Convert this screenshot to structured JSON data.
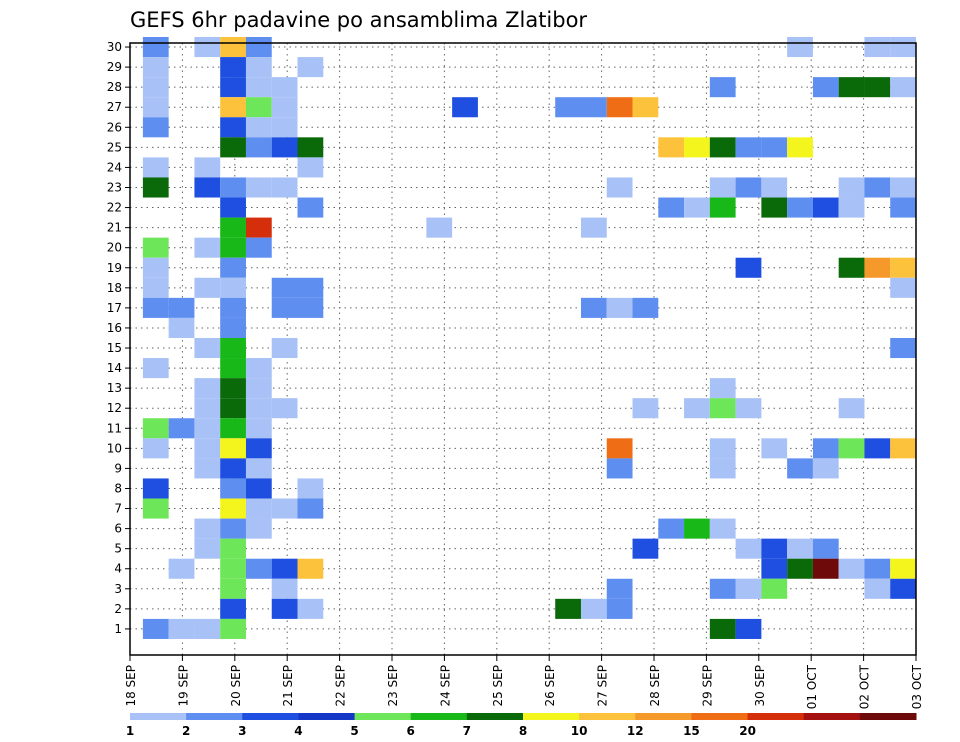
{
  "chart_data": {
    "type": "heatmap",
    "title": "GEFS 6hr padavine po ansamblima Zlatibor",
    "xlabel": "",
    "ylabel": "",
    "x_tick_labels": [
      "18 SEP",
      "19 SEP",
      "20 SEP",
      "21 SEP",
      "22 SEP",
      "23 SEP",
      "24 SEP",
      "25 SEP",
      "26 SEP",
      "27 SEP",
      "28 SEP",
      "29 SEP",
      "30 SEP",
      "01 OCT",
      "02 OCT",
      "03 OCT"
    ],
    "y_tick_labels": [
      1,
      2,
      3,
      4,
      5,
      6,
      7,
      8,
      9,
      10,
      11,
      12,
      13,
      14,
      15,
      16,
      17,
      18,
      19,
      20,
      21,
      22,
      23,
      24,
      25,
      26,
      27,
      28,
      29,
      30
    ],
    "y_range": [
      0,
      30
    ],
    "time_steps": 60,
    "grid": "dotted",
    "colorbar": {
      "labels": [
        "1",
        "2",
        "3",
        "4",
        "5",
        "6",
        "7",
        "8",
        "10",
        "12",
        "15",
        "20"
      ],
      "colors": [
        "#a8c1f6",
        "#5d8ef0",
        "#1e4fe0",
        "#1537c8",
        "#6ee65a",
        "#17b817",
        "#0a6a0a",
        "#f5f51e",
        "#fcc23c",
        "#f59a2a",
        "#ef6d14",
        "#d42e0a",
        "#a51010",
        "#6e0a0a"
      ]
    },
    "cells": [
      {
        "y": 30,
        "x": [
          1
        ],
        "c": 2
      },
      {
        "y": 30,
        "x": [
          3
        ],
        "c": 1
      },
      {
        "y": 30,
        "x": [
          4
        ],
        "c": 9
      },
      {
        "y": 30,
        "x": [
          5
        ],
        "c": 2
      },
      {
        "y": 30,
        "x": [
          26
        ],
        "c": 1
      },
      {
        "y": 30,
        "x": [
          29,
          30
        ],
        "c": 1
      },
      {
        "y": 29,
        "x": [
          1
        ],
        "c": 1
      },
      {
        "y": 29,
        "x": [
          4
        ],
        "c": 3
      },
      {
        "y": 29,
        "x": [
          5
        ],
        "c": 1
      },
      {
        "y": 29,
        "x": [
          7
        ],
        "c": 1
      },
      {
        "y": 28,
        "x": [
          1
        ],
        "c": 1
      },
      {
        "y": 28,
        "x": [
          4
        ],
        "c": 3
      },
      {
        "y": 28,
        "x": [
          5
        ],
        "c": 1
      },
      {
        "y": 28,
        "x": [
          6
        ],
        "c": 1
      },
      {
        "y": 28,
        "x": [
          23
        ],
        "c": 2
      },
      {
        "y": 28,
        "x": [
          27
        ],
        "c": 2
      },
      {
        "y": 28,
        "x": [
          28
        ],
        "c": 7
      },
      {
        "y": 28,
        "x": [
          29
        ],
        "c": 7
      },
      {
        "y": 28,
        "x": [
          30
        ],
        "c": 1
      },
      {
        "y": 27,
        "x": [
          1
        ],
        "c": 1
      },
      {
        "y": 27,
        "x": [
          4
        ],
        "c": 9
      },
      {
        "y": 27,
        "x": [
          5
        ],
        "c": 5
      },
      {
        "y": 27,
        "x": [
          6
        ],
        "c": 1
      },
      {
        "y": 27,
        "x": [
          13
        ],
        "c": 3
      },
      {
        "y": 27,
        "x": [
          17
        ],
        "c": 2
      },
      {
        "y": 27,
        "x": [
          18
        ],
        "c": 2
      },
      {
        "y": 27,
        "x": [
          19
        ],
        "c": 11
      },
      {
        "y": 27,
        "x": [
          20
        ],
        "c": 9
      },
      {
        "y": 26,
        "x": [
          1
        ],
        "c": 2
      },
      {
        "y": 26,
        "x": [
          4
        ],
        "c": 3
      },
      {
        "y": 26,
        "x": [
          5
        ],
        "c": 1
      },
      {
        "y": 26,
        "x": [
          6
        ],
        "c": 1
      },
      {
        "y": 25,
        "x": [
          4
        ],
        "c": 7
      },
      {
        "y": 25,
        "x": [
          5
        ],
        "c": 2
      },
      {
        "y": 25,
        "x": [
          6
        ],
        "c": 3
      },
      {
        "y": 25,
        "x": [
          7
        ],
        "c": 7
      },
      {
        "y": 25,
        "x": [
          21
        ],
        "c": 9
      },
      {
        "y": 25,
        "x": [
          22
        ],
        "c": 8
      },
      {
        "y": 25,
        "x": [
          23
        ],
        "c": 7
      },
      {
        "y": 25,
        "x": [
          24
        ],
        "c": 2
      },
      {
        "y": 25,
        "x": [
          25
        ],
        "c": 2
      },
      {
        "y": 25,
        "x": [
          26
        ],
        "c": 8
      },
      {
        "y": 24,
        "x": [
          1
        ],
        "c": 1
      },
      {
        "y": 24,
        "x": [
          3
        ],
        "c": 1
      },
      {
        "y": 24,
        "x": [
          7
        ],
        "c": 1
      },
      {
        "y": 23,
        "x": [
          1
        ],
        "c": 7
      },
      {
        "y": 23,
        "x": [
          3
        ],
        "c": 3
      },
      {
        "y": 23,
        "x": [
          4
        ],
        "c": 2
      },
      {
        "y": 23,
        "x": [
          5
        ],
        "c": 1
      },
      {
        "y": 23,
        "x": [
          6
        ],
        "c": 1
      },
      {
        "y": 23,
        "x": [
          19
        ],
        "c": 1
      },
      {
        "y": 23,
        "x": [
          23
        ],
        "c": 1
      },
      {
        "y": 23,
        "x": [
          24
        ],
        "c": 2
      },
      {
        "y": 23,
        "x": [
          25
        ],
        "c": 1
      },
      {
        "y": 23,
        "x": [
          28
        ],
        "c": 1
      },
      {
        "y": 23,
        "x": [
          29
        ],
        "c": 2
      },
      {
        "y": 23,
        "x": [
          30
        ],
        "c": 1
      },
      {
        "y": 22,
        "x": [
          4
        ],
        "c": 3
      },
      {
        "y": 22,
        "x": [
          7
        ],
        "c": 2
      },
      {
        "y": 22,
        "x": [
          21
        ],
        "c": 2
      },
      {
        "y": 22,
        "x": [
          22
        ],
        "c": 1
      },
      {
        "y": 22,
        "x": [
          23
        ],
        "c": 6
      },
      {
        "y": 22,
        "x": [
          25
        ],
        "c": 7
      },
      {
        "y": 22,
        "x": [
          26
        ],
        "c": 2
      },
      {
        "y": 22,
        "x": [
          27
        ],
        "c": 3
      },
      {
        "y": 22,
        "x": [
          28
        ],
        "c": 1
      },
      {
        "y": 22,
        "x": [
          30
        ],
        "c": 2
      },
      {
        "y": 21,
        "x": [
          4
        ],
        "c": 6
      },
      {
        "y": 21,
        "x": [
          5
        ],
        "c": 12
      },
      {
        "y": 21,
        "x": [
          12
        ],
        "c": 1
      },
      {
        "y": 21,
        "x": [
          18
        ],
        "c": 1
      },
      {
        "y": 20,
        "x": [
          1
        ],
        "c": 5
      },
      {
        "y": 20,
        "x": [
          3
        ],
        "c": 1
      },
      {
        "y": 20,
        "x": [
          4
        ],
        "c": 6
      },
      {
        "y": 20,
        "x": [
          5
        ],
        "c": 2
      },
      {
        "y": 19,
        "x": [
          1
        ],
        "c": 1
      },
      {
        "y": 19,
        "x": [
          4
        ],
        "c": 2
      },
      {
        "y": 19,
        "x": [
          24
        ],
        "c": 3
      },
      {
        "y": 19,
        "x": [
          28
        ],
        "c": 7
      },
      {
        "y": 19,
        "x": [
          29
        ],
        "c": 10
      },
      {
        "y": 19,
        "x": [
          30
        ],
        "c": 9
      },
      {
        "y": 18,
        "x": [
          1
        ],
        "c": 1
      },
      {
        "y": 18,
        "x": [
          3
        ],
        "c": 1
      },
      {
        "y": 18,
        "x": [
          4
        ],
        "c": 1
      },
      {
        "y": 18,
        "x": [
          6
        ],
        "c": 2
      },
      {
        "y": 18,
        "x": [
          7
        ],
        "c": 2
      },
      {
        "y": 18,
        "x": [
          30
        ],
        "c": 1
      },
      {
        "y": 17,
        "x": [
          1
        ],
        "c": 2
      },
      {
        "y": 17,
        "x": [
          2
        ],
        "c": 2
      },
      {
        "y": 17,
        "x": [
          4
        ],
        "c": 2
      },
      {
        "y": 17,
        "x": [
          6
        ],
        "c": 2
      },
      {
        "y": 17,
        "x": [
          7
        ],
        "c": 2
      },
      {
        "y": 17,
        "x": [
          18
        ],
        "c": 2
      },
      {
        "y": 17,
        "x": [
          19
        ],
        "c": 1
      },
      {
        "y": 17,
        "x": [
          20
        ],
        "c": 2
      },
      {
        "y": 16,
        "x": [
          2
        ],
        "c": 1
      },
      {
        "y": 16,
        "x": [
          4
        ],
        "c": 2
      },
      {
        "y": 15,
        "x": [
          3
        ],
        "c": 1
      },
      {
        "y": 15,
        "x": [
          4
        ],
        "c": 6
      },
      {
        "y": 15,
        "x": [
          6
        ],
        "c": 1
      },
      {
        "y": 15,
        "x": [
          30
        ],
        "c": 2
      },
      {
        "y": 14,
        "x": [
          1
        ],
        "c": 1
      },
      {
        "y": 14,
        "x": [
          4
        ],
        "c": 6
      },
      {
        "y": 14,
        "x": [
          5
        ],
        "c": 1
      },
      {
        "y": 13,
        "x": [
          3
        ],
        "c": 1
      },
      {
        "y": 13,
        "x": [
          4
        ],
        "c": 7
      },
      {
        "y": 13,
        "x": [
          5
        ],
        "c": 1
      },
      {
        "y": 13,
        "x": [
          23
        ],
        "c": 1
      },
      {
        "y": 12,
        "x": [
          3
        ],
        "c": 1
      },
      {
        "y": 12,
        "x": [
          4
        ],
        "c": 7
      },
      {
        "y": 12,
        "x": [
          5
        ],
        "c": 1
      },
      {
        "y": 12,
        "x": [
          6
        ],
        "c": 1
      },
      {
        "y": 12,
        "x": [
          20
        ],
        "c": 1
      },
      {
        "y": 12,
        "x": [
          22
        ],
        "c": 1
      },
      {
        "y": 12,
        "x": [
          23
        ],
        "c": 5
      },
      {
        "y": 12,
        "x": [
          24
        ],
        "c": 1
      },
      {
        "y": 12,
        "x": [
          28
        ],
        "c": 1
      },
      {
        "y": 11,
        "x": [
          1
        ],
        "c": 5
      },
      {
        "y": 11,
        "x": [
          2
        ],
        "c": 2
      },
      {
        "y": 11,
        "x": [
          3
        ],
        "c": 1
      },
      {
        "y": 11,
        "x": [
          4
        ],
        "c": 6
      },
      {
        "y": 11,
        "x": [
          5
        ],
        "c": 1
      },
      {
        "y": 10,
        "x": [
          1
        ],
        "c": 1
      },
      {
        "y": 10,
        "x": [
          3
        ],
        "c": 1
      },
      {
        "y": 10,
        "x": [
          4
        ],
        "c": 8
      },
      {
        "y": 10,
        "x": [
          5
        ],
        "c": 3
      },
      {
        "y": 10,
        "x": [
          19
        ],
        "c": 11
      },
      {
        "y": 10,
        "x": [
          25
        ],
        "c": 1
      },
      {
        "y": 10,
        "x": [
          23
        ],
        "c": 1
      },
      {
        "y": 10,
        "x": [
          27
        ],
        "c": 2
      },
      {
        "y": 10,
        "x": [
          28
        ],
        "c": 5
      },
      {
        "y": 10,
        "x": [
          29
        ],
        "c": 3
      },
      {
        "y": 10,
        "x": [
          30
        ],
        "c": 9
      },
      {
        "y": 9,
        "x": [
          3
        ],
        "c": 1
      },
      {
        "y": 9,
        "x": [
          4
        ],
        "c": 3
      },
      {
        "y": 9,
        "x": [
          5
        ],
        "c": 1
      },
      {
        "y": 9,
        "x": [
          19
        ],
        "c": 2
      },
      {
        "y": 9,
        "x": [
          23
        ],
        "c": 1
      },
      {
        "y": 9,
        "x": [
          26
        ],
        "c": 2
      },
      {
        "y": 9,
        "x": [
          27
        ],
        "c": 1
      },
      {
        "y": 8,
        "x": [
          1
        ],
        "c": 3
      },
      {
        "y": 8,
        "x": [
          4
        ],
        "c": 2
      },
      {
        "y": 8,
        "x": [
          5
        ],
        "c": 3
      },
      {
        "y": 8,
        "x": [
          7
        ],
        "c": 1
      },
      {
        "y": 7,
        "x": [
          1
        ],
        "c": 5
      },
      {
        "y": 7,
        "x": [
          4
        ],
        "c": 8
      },
      {
        "y": 7,
        "x": [
          5
        ],
        "c": 1
      },
      {
        "y": 7,
        "x": [
          6
        ],
        "c": 1
      },
      {
        "y": 7,
        "x": [
          7
        ],
        "c": 2
      },
      {
        "y": 6,
        "x": [
          3
        ],
        "c": 1
      },
      {
        "y": 6,
        "x": [
          4
        ],
        "c": 2
      },
      {
        "y": 6,
        "x": [
          5
        ],
        "c": 1
      },
      {
        "y": 6,
        "x": [
          21
        ],
        "c": 2
      },
      {
        "y": 6,
        "x": [
          22
        ],
        "c": 6
      },
      {
        "y": 6,
        "x": [
          23
        ],
        "c": 1
      },
      {
        "y": 5,
        "x": [
          3
        ],
        "c": 1
      },
      {
        "y": 5,
        "x": [
          4
        ],
        "c": 5
      },
      {
        "y": 5,
        "x": [
          20
        ],
        "c": 3
      },
      {
        "y": 5,
        "x": [
          24
        ],
        "c": 1
      },
      {
        "y": 5,
        "x": [
          25
        ],
        "c": 3
      },
      {
        "y": 5,
        "x": [
          26
        ],
        "c": 1
      },
      {
        "y": 5,
        "x": [
          27
        ],
        "c": 2
      },
      {
        "y": 4,
        "x": [
          2
        ],
        "c": 1
      },
      {
        "y": 4,
        "x": [
          4
        ],
        "c": 5
      },
      {
        "y": 4,
        "x": [
          5
        ],
        "c": 2
      },
      {
        "y": 4,
        "x": [
          6
        ],
        "c": 3
      },
      {
        "y": 4,
        "x": [
          7
        ],
        "c": 9
      },
      {
        "y": 4,
        "x": [
          25
        ],
        "c": 3
      },
      {
        "y": 4,
        "x": [
          26
        ],
        "c": 7
      },
      {
        "y": 4,
        "x": [
          27
        ],
        "c": 14
      },
      {
        "y": 4,
        "x": [
          28
        ],
        "c": 1
      },
      {
        "y": 4,
        "x": [
          29
        ],
        "c": 2
      },
      {
        "y": 4,
        "x": [
          30
        ],
        "c": 8
      },
      {
        "y": 3,
        "x": [
          4
        ],
        "c": 5
      },
      {
        "y": 3,
        "x": [
          6
        ],
        "c": 1
      },
      {
        "y": 3,
        "x": [
          19
        ],
        "c": 2
      },
      {
        "y": 3,
        "x": [
          24
        ],
        "c": 1
      },
      {
        "y": 3,
        "x": [
          25
        ],
        "c": 5
      },
      {
        "y": 3,
        "x": [
          23
        ],
        "c": 2
      },
      {
        "y": 3,
        "x": [
          24
        ],
        "c": 1
      },
      {
        "y": 3,
        "x": [
          29
        ],
        "c": 1
      },
      {
        "y": 3,
        "x": [
          30
        ],
        "c": 3
      },
      {
        "y": 2,
        "x": [
          4
        ],
        "c": 3
      },
      {
        "y": 2,
        "x": [
          6
        ],
        "c": 3
      },
      {
        "y": 2,
        "x": [
          7
        ],
        "c": 1
      },
      {
        "y": 2,
        "x": [
          17
        ],
        "c": 7
      },
      {
        "y": 2,
        "x": [
          18
        ],
        "c": 1
      },
      {
        "y": 2,
        "x": [
          19
        ],
        "c": 2
      },
      {
        "y": 1,
        "x": [
          1
        ],
        "c": 2
      },
      {
        "y": 1,
        "x": [
          2
        ],
        "c": 1
      },
      {
        "y": 1,
        "x": [
          3
        ],
        "c": 1
      },
      {
        "y": 1,
        "x": [
          4
        ],
        "c": 5
      },
      {
        "y": 1,
        "x": [
          23
        ],
        "c": 7
      },
      {
        "y": 1,
        "x": [
          24
        ],
        "c": 3
      }
    ]
  }
}
